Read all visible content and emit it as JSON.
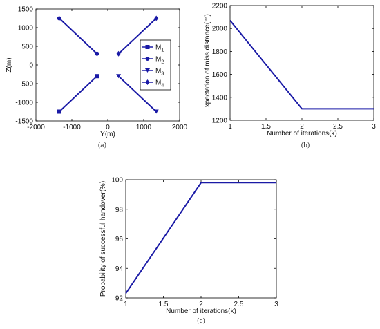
{
  "chart_data": [
    {
      "type": "line",
      "panel": "(a)",
      "xlabel": "Y(m)",
      "ylabel": "Z(m)",
      "xlim": [
        -2000,
        2000
      ],
      "ylim": [
        -1500,
        1500
      ],
      "xticks": [
        -2000,
        -1000,
        0,
        1000,
        2000
      ],
      "yticks": [
        -1500,
        -1000,
        -500,
        0,
        500,
        1000,
        1500
      ],
      "legend_position": "center-right",
      "series": [
        {
          "name": "M",
          "sub": "1",
          "marker": "square",
          "x": [
            -1350,
            -300
          ],
          "y": [
            -1250,
            -300
          ]
        },
        {
          "name": "M",
          "sub": "2",
          "marker": "circle",
          "x": [
            -1350,
            -300
          ],
          "y": [
            1250,
            300
          ]
        },
        {
          "name": "M",
          "sub": "3",
          "marker": "triangle-down",
          "x": [
            1350,
            300
          ],
          "y": [
            -1250,
            -300
          ]
        },
        {
          "name": "M",
          "sub": "4",
          "marker": "diamond",
          "x": [
            1350,
            300
          ],
          "y": [
            1250,
            300
          ]
        }
      ],
      "color": "#1a1aa6"
    },
    {
      "type": "line",
      "panel": "(b)",
      "xlabel": "Number of iterations(k)",
      "ylabel": "Expectation of miss distance(m)",
      "xlim": [
        1,
        3
      ],
      "ylim": [
        1200,
        2200
      ],
      "xticks": [
        "1",
        "1.5",
        "2",
        "2.5",
        "3"
      ],
      "yticks": [
        "1200",
        "1400",
        "1600",
        "1800",
        "2000",
        "2200"
      ],
      "series": [
        {
          "x": [
            1,
            2,
            3
          ],
          "y": [
            2070,
            1300,
            1300
          ]
        }
      ],
      "color": "#1a1aa6"
    },
    {
      "type": "line",
      "panel": "(c)",
      "xlabel": "Number of iterations(k)",
      "ylabel": "Probability of successful handover(%)",
      "xlim": [
        1,
        3
      ],
      "ylim": [
        92,
        100
      ],
      "xticks": [
        "1",
        "1.5",
        "2",
        "2.5",
        "3"
      ],
      "yticks": [
        "92",
        "94",
        "96",
        "98",
        "100"
      ],
      "series": [
        {
          "x": [
            1,
            2,
            3
          ],
          "y": [
            92.3,
            99.8,
            99.8
          ]
        }
      ],
      "color": "#1a1aa6"
    }
  ]
}
